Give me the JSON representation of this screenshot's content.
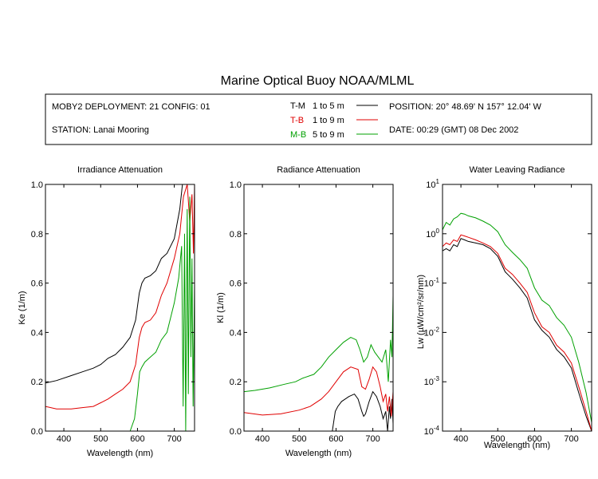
{
  "title": "Marine Optical Buoy NOAA/MLML",
  "info": {
    "deployment": "MOBY2 DEPLOYMENT: 21 CONFIG: 01",
    "station": "STATION: Lanai Mooring",
    "position": "POSITION: 20° 48.69' N   157° 12.04' W",
    "date": "DATE: 00:29 (GMT) 08 Dec 2002",
    "legend": [
      {
        "code": "T-M",
        "range": "1 to 5  m",
        "color": "#000000"
      },
      {
        "code": "T-B",
        "range": "1 to 9  m",
        "color": "#e00000"
      },
      {
        "code": "M-B",
        "range": "5 to 9  m",
        "color": "#00a000"
      }
    ]
  },
  "chart_data": [
    {
      "type": "line",
      "title": "Irradiance Attenuation",
      "xlabel": "Wavelength (nm)",
      "ylabel": "Ke  (1/m)",
      "xlim": [
        350,
        755
      ],
      "ylim": [
        0,
        1
      ],
      "xticks": [
        "400",
        "500",
        "600",
        "700"
      ],
      "yticks": [
        "0.0",
        "0.2",
        "0.4",
        "0.6",
        "0.8",
        "1.0"
      ],
      "series": [
        {
          "name": "T-M",
          "color": "#000000",
          "x": [
            350,
            380,
            420,
            450,
            480,
            500,
            520,
            540,
            560,
            580,
            595,
            605,
            612,
            620,
            635,
            650,
            665,
            680,
            700,
            715,
            722
          ],
          "y": [
            0.195,
            0.205,
            0.225,
            0.24,
            0.255,
            0.27,
            0.295,
            0.31,
            0.34,
            0.38,
            0.45,
            0.56,
            0.6,
            0.62,
            0.63,
            0.65,
            0.7,
            0.72,
            0.78,
            0.9,
            1.0
          ]
        },
        {
          "name": "T-B",
          "color": "#e00000",
          "x": [
            350,
            380,
            420,
            450,
            480,
            500,
            520,
            540,
            560,
            580,
            595,
            605,
            612,
            620,
            635,
            650,
            665,
            680,
            700,
            715,
            725,
            735,
            742,
            748,
            752,
            755
          ],
          "y": [
            0.1,
            0.09,
            0.09,
            0.095,
            0.1,
            0.115,
            0.13,
            0.15,
            0.17,
            0.2,
            0.27,
            0.38,
            0.42,
            0.44,
            0.45,
            0.48,
            0.55,
            0.6,
            0.7,
            0.8,
            0.95,
            1.0,
            0.85,
            0.96,
            0.72,
            1.0
          ]
        },
        {
          "name": "M-B",
          "color": "#00a000",
          "x": [
            580,
            592,
            600,
            606,
            612,
            620,
            635,
            650,
            665,
            680,
            700,
            712,
            720,
            724,
            728,
            731,
            735,
            738,
            742,
            745,
            748,
            751,
            755
          ],
          "y": [
            0.0,
            0.05,
            0.15,
            0.24,
            0.26,
            0.28,
            0.3,
            0.32,
            0.37,
            0.4,
            0.52,
            0.62,
            0.75,
            0.1,
            0.8,
            0.0,
            0.9,
            0.15,
            0.95,
            0.3,
            0.7,
            0.1,
            0.6
          ]
        }
      ]
    },
    {
      "type": "line",
      "title": "Radiance Attenuation",
      "xlabel": "Wavelength (nm)",
      "ylabel": "Kl  (1/m)",
      "xlim": [
        350,
        755
      ],
      "ylim": [
        0,
        1
      ],
      "xticks": [
        "400",
        "500",
        "600",
        "700"
      ],
      "yticks": [
        "0.0",
        "0.2",
        "0.4",
        "0.6",
        "0.8",
        "1.0"
      ],
      "series": [
        {
          "name": "T-M",
          "color": "#000000",
          "x": [
            590,
            598,
            605,
            615,
            625,
            635,
            650,
            660,
            670,
            675,
            680,
            690,
            700,
            710,
            720,
            728,
            735,
            740,
            745,
            748,
            752,
            755
          ],
          "y": [
            0.0,
            0.08,
            0.1,
            0.12,
            0.13,
            0.14,
            0.15,
            0.13,
            0.08,
            0.06,
            0.07,
            0.12,
            0.16,
            0.14,
            0.1,
            0.05,
            0.08,
            0.0,
            0.1,
            0.05,
            0.13,
            0.03
          ]
        },
        {
          "name": "T-B",
          "color": "#e00000",
          "x": [
            350,
            400,
            450,
            500,
            530,
            560,
            580,
            600,
            620,
            640,
            660,
            670,
            680,
            690,
            700,
            710,
            720,
            728,
            735,
            740,
            745,
            750,
            755
          ],
          "y": [
            0.075,
            0.065,
            0.07,
            0.085,
            0.1,
            0.13,
            0.16,
            0.2,
            0.24,
            0.26,
            0.25,
            0.18,
            0.17,
            0.21,
            0.26,
            0.24,
            0.18,
            0.12,
            0.15,
            0.08,
            0.14,
            0.06,
            0.16
          ]
        },
        {
          "name": "M-B",
          "color": "#00a000",
          "x": [
            350,
            380,
            420,
            460,
            490,
            510,
            540,
            560,
            580,
            600,
            620,
            640,
            655,
            665,
            675,
            685,
            695,
            705,
            715,
            725,
            735,
            742,
            748,
            752,
            755
          ],
          "y": [
            0.16,
            0.165,
            0.175,
            0.19,
            0.2,
            0.215,
            0.23,
            0.26,
            0.3,
            0.33,
            0.36,
            0.38,
            0.37,
            0.33,
            0.28,
            0.3,
            0.35,
            0.32,
            0.3,
            0.28,
            0.33,
            0.2,
            0.37,
            0.3,
            0.55
          ]
        }
      ]
    },
    {
      "type": "line",
      "title": "Water Leaving Radiance",
      "xlabel": "Wavelength (nm)",
      "ylabel": "Lw  (µW/cm²/sr/nm)",
      "log_y": true,
      "xlim": [
        350,
        755
      ],
      "ylim": [
        0.0001,
        10
      ],
      "xticks": [
        "400",
        "500",
        "600",
        "700"
      ],
      "ytick_exponents": [
        "1",
        "0",
        "-1",
        "-2",
        "-3",
        "-4"
      ],
      "series": [
        {
          "name": "T-M",
          "color": "#000000",
          "x": [
            350,
            360,
            370,
            380,
            390,
            400,
            410,
            420,
            440,
            460,
            480,
            500,
            520,
            540,
            560,
            580,
            600,
            620,
            640,
            660,
            680,
            700,
            720,
            740,
            755
          ],
          "y": [
            0.45,
            0.5,
            0.45,
            0.6,
            0.55,
            0.8,
            0.75,
            0.7,
            0.65,
            0.6,
            0.5,
            0.35,
            0.17,
            0.12,
            0.08,
            0.05,
            0.018,
            0.011,
            0.008,
            0.0045,
            0.0032,
            0.0019,
            0.0006,
            0.0002,
            0.0001
          ]
        },
        {
          "name": "T-B",
          "color": "#e00000",
          "x": [
            350,
            360,
            370,
            380,
            390,
            400,
            410,
            420,
            440,
            460,
            480,
            500,
            520,
            540,
            560,
            580,
            600,
            620,
            640,
            660,
            680,
            700,
            720,
            740,
            755
          ],
          "y": [
            0.55,
            0.65,
            0.6,
            0.75,
            0.7,
            0.95,
            0.9,
            0.85,
            0.75,
            0.65,
            0.55,
            0.4,
            0.2,
            0.15,
            0.1,
            0.065,
            0.025,
            0.013,
            0.01,
            0.0055,
            0.004,
            0.0024,
            0.0008,
            0.00025,
            0.0001
          ]
        },
        {
          "name": "M-B",
          "color": "#00a000",
          "x": [
            350,
            360,
            370,
            380,
            390,
            400,
            410,
            420,
            440,
            460,
            480,
            500,
            520,
            540,
            560,
            580,
            600,
            620,
            640,
            660,
            680,
            700,
            720,
            740,
            755
          ],
          "y": [
            1.2,
            1.7,
            1.5,
            2.0,
            2.2,
            2.6,
            2.5,
            2.3,
            2.1,
            1.8,
            1.5,
            1.1,
            0.6,
            0.42,
            0.3,
            0.2,
            0.08,
            0.045,
            0.035,
            0.02,
            0.014,
            0.008,
            0.0025,
            0.0006,
            0.00015
          ]
        }
      ]
    }
  ]
}
